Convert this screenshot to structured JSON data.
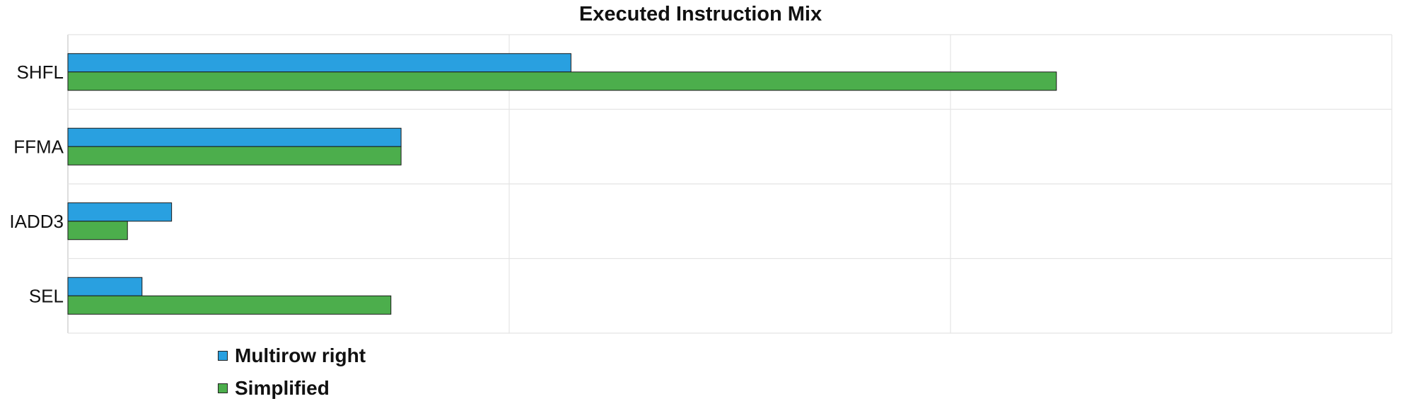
{
  "chart_data": {
    "type": "bar",
    "orientation": "horizontal",
    "title": "Executed Instruction Mix",
    "categories": [
      "SHFL",
      "FFMA",
      "IADD3",
      "SEL"
    ],
    "series": [
      {
        "name": "Multirow right",
        "color": "#29a0e0",
        "values": [
          11.4,
          7.55,
          2.35,
          1.68
        ]
      },
      {
        "name": "Simplified",
        "color": "#4cae4c",
        "values": [
          22.4,
          7.55,
          1.35,
          7.32
        ]
      }
    ],
    "xlim": [
      0,
      30
    ],
    "xticks": [
      0,
      10,
      20,
      30
    ],
    "grid": true,
    "legend": "bottom-left"
  }
}
